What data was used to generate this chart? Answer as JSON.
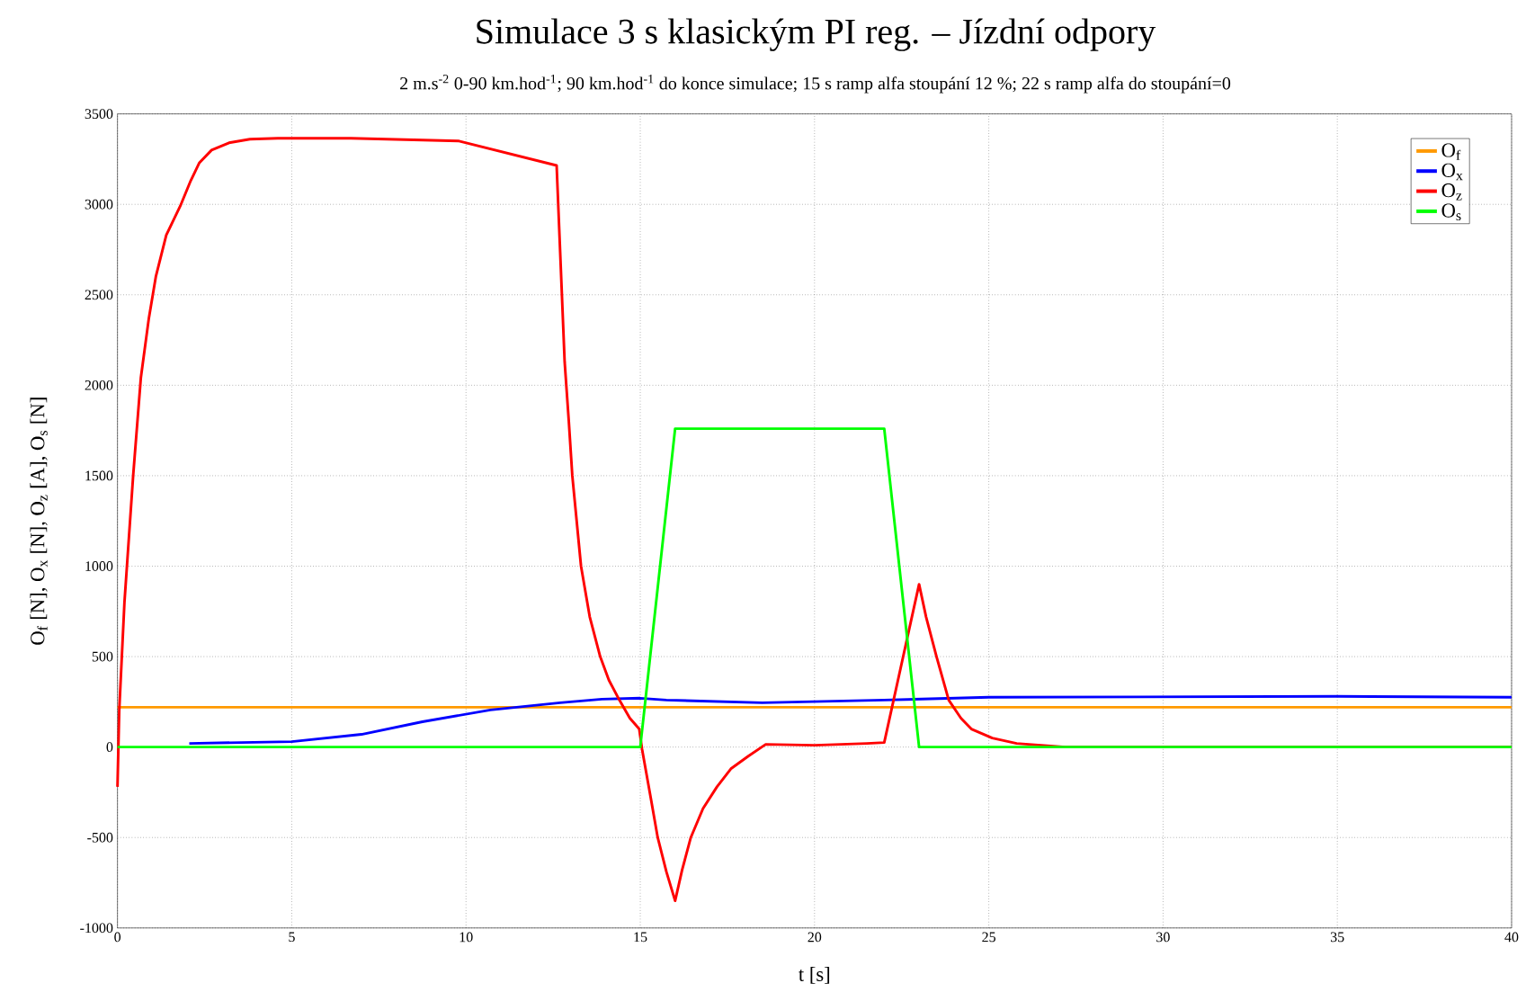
{
  "chart_data": {
    "type": "line",
    "title": "Simulace 3 s klasickým PI reg. – Jízdní odpory",
    "subtitle": "2 m.s$^{-2}$ 0-90 km.hod$^{-1}$; 90 km.hod$^{-1}$ do konce simulace; 15 s ramp alfa stoupání 12 %; 22 s ramp alfa do stoupání=0",
    "xlabel": "t [s]",
    "ylabel": "O$_{f}$ [N], O$_{x}$ [N], O$_{z}$ [A], O$_{s}$ [N]",
    "xlim": [
      0,
      40
    ],
    "xticks": [
      0,
      5,
      10,
      15,
      20,
      25,
      30,
      35,
      40
    ],
    "ylim": [
      -1000,
      3500
    ],
    "yticks": [
      -1000,
      -500,
      0,
      500,
      1000,
      1500,
      2000,
      2500,
      3000,
      3500
    ],
    "grid": true,
    "legend": "top right",
    "marker": "none",
    "line_style": "solid",
    "series": [
      {
        "name": "O$_{f}$",
        "color": "#ff9900",
        "x": [
          0,
          40
        ],
        "values": [
          220,
          220
        ]
      },
      {
        "name": "O$_{x}$",
        "color": "#0000ff",
        "x": [
          2.06,
          5,
          7,
          8.75,
          10.7,
          12.7,
          13.9,
          15,
          15.75,
          18.5,
          22,
          25,
          35,
          40
        ],
        "values": [
          20,
          30,
          70,
          140,
          205,
          245,
          265,
          270,
          260,
          245,
          260,
          275,
          280,
          275
        ]
      },
      {
        "name": "O$_{z}$",
        "color": "#ff0000",
        "x": [
          0,
          0.05,
          0.2,
          0.45,
          0.67,
          0.9,
          1.1,
          1.4,
          1.8,
          2.1,
          2.35,
          2.7,
          3.2,
          3.8,
          4.6,
          6.7,
          9.8,
          12.6,
          12.83,
          12.95,
          13.05,
          13.3,
          13.55,
          13.85,
          14.1,
          14.4,
          14.7,
          14.97,
          15.05,
          15.3,
          15.5,
          15.75,
          16.0,
          16.2,
          16.45,
          16.8,
          17.2,
          17.6,
          18.1,
          18.6,
          20,
          21.5,
          22,
          23.0,
          23.2,
          23.5,
          23.85,
          24.2,
          24.5,
          25.1,
          25.8,
          27.2,
          40
        ],
        "values": [
          -220,
          200,
          800,
          1500,
          2040,
          2370,
          2600,
          2830,
          2990,
          3130,
          3230,
          3300,
          3340,
          3360,
          3365,
          3365,
          3350,
          3215,
          2130,
          1800,
          1500,
          1000,
          720,
          500,
          370,
          260,
          160,
          100,
          -10,
          -280,
          -500,
          -690,
          -850,
          -680,
          -500,
          -340,
          -220,
          -120,
          -50,
          15,
          10,
          20,
          25,
          900,
          720,
          500,
          260,
          160,
          100,
          50,
          20,
          0,
          0
        ]
      },
      {
        "name": "O$_{s}$",
        "color": "#00ff00",
        "x": [
          0,
          15,
          16,
          22,
          23,
          40
        ],
        "values": [
          0,
          0,
          1760,
          1760,
          0,
          0
        ]
      }
    ]
  }
}
